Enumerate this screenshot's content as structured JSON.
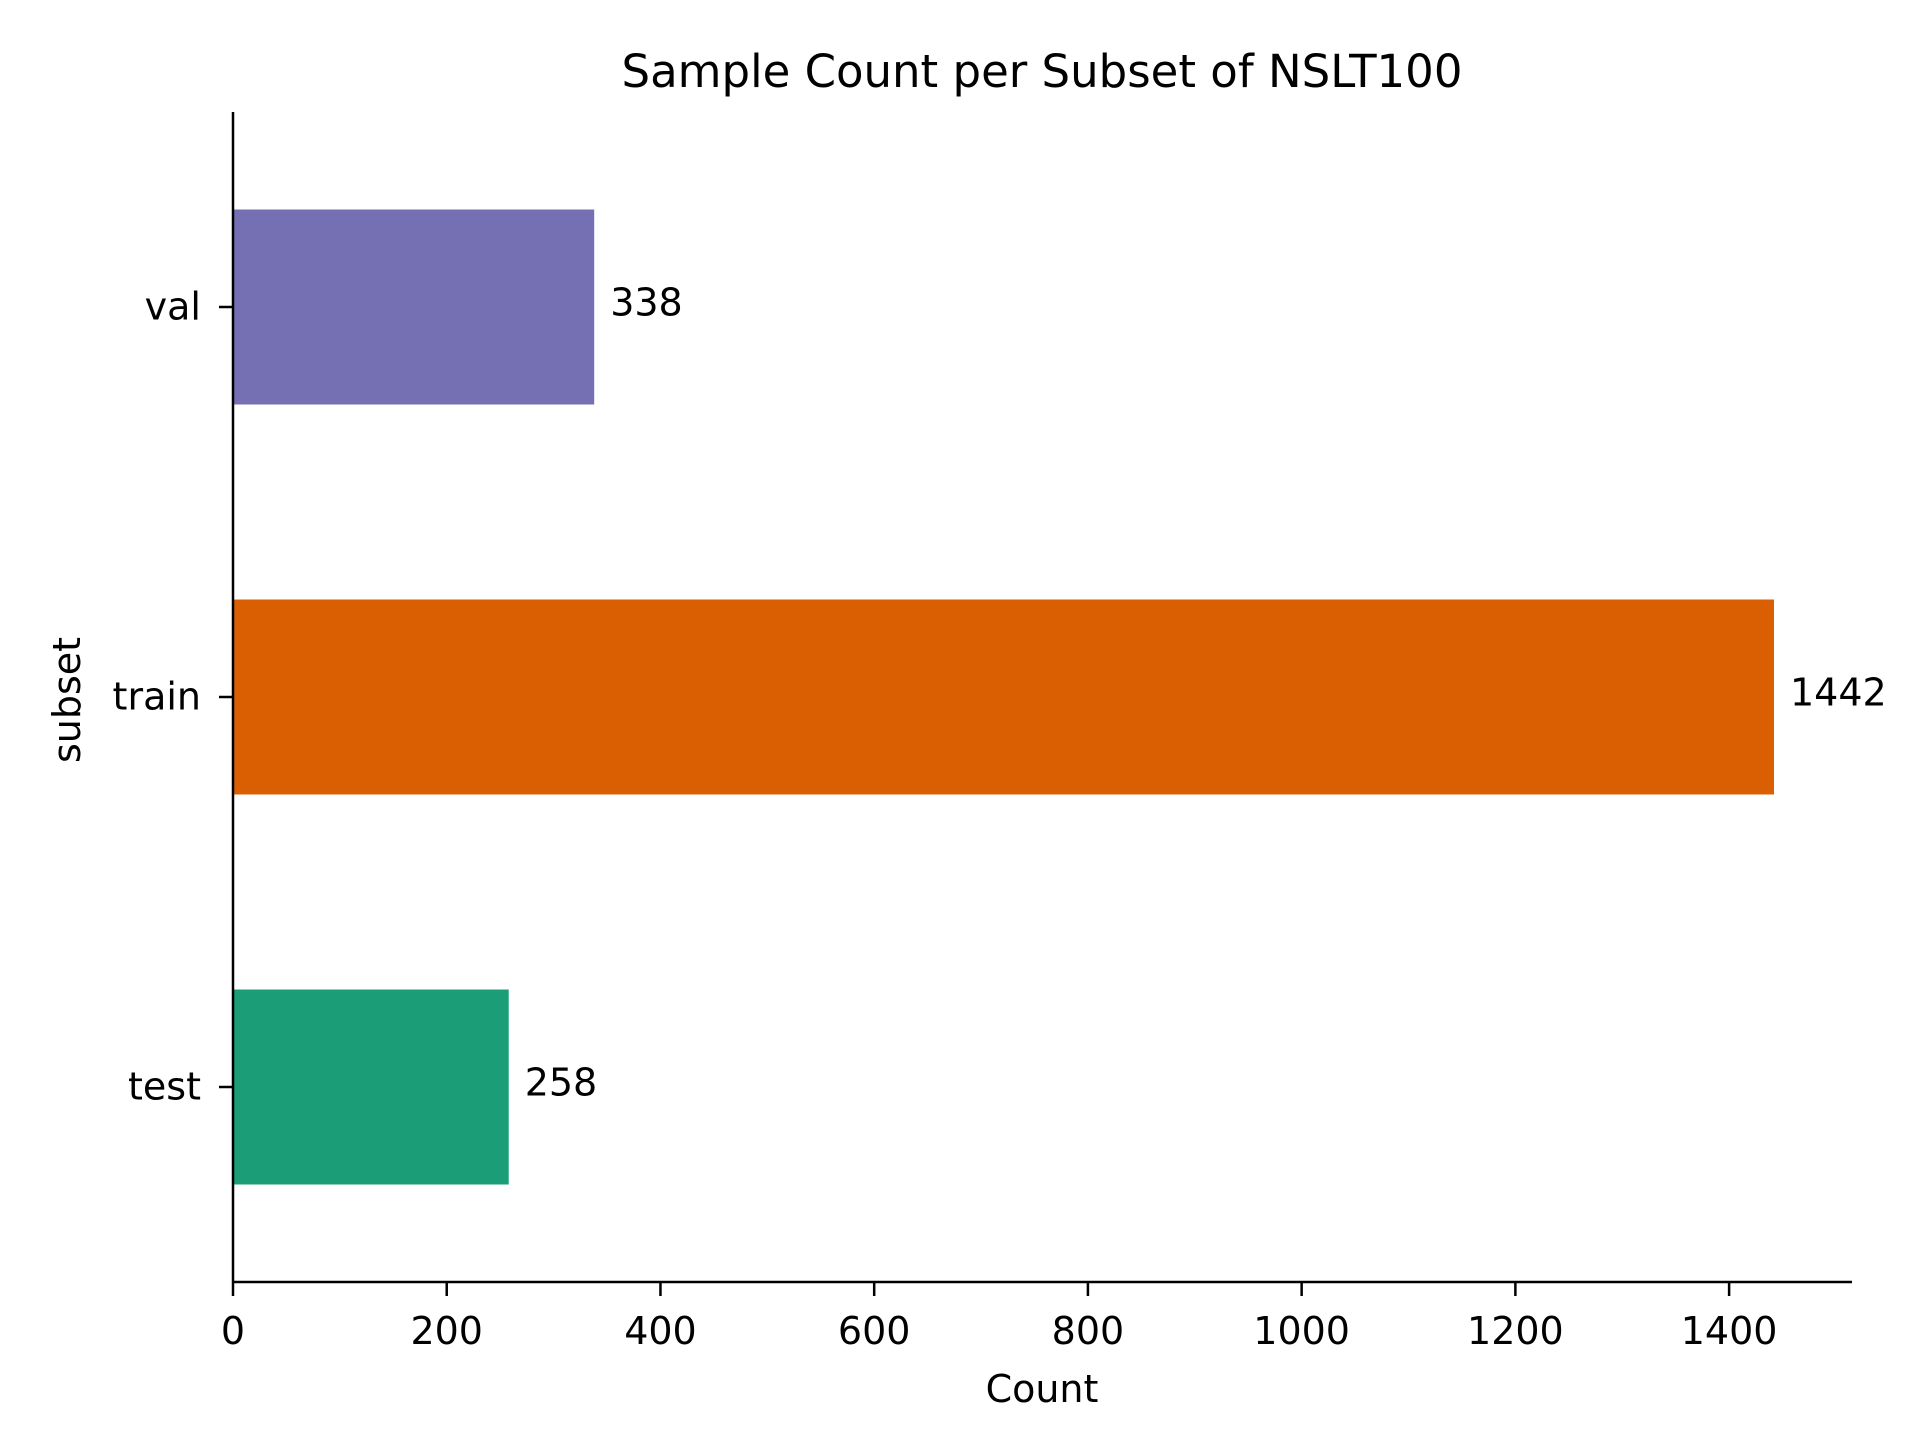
{
  "chart_data": {
    "type": "bar",
    "orientation": "horizontal",
    "title": "Sample Count per Subset of NSLT100",
    "xlabel": "Count",
    "ylabel": "subset",
    "categories": [
      "test",
      "train",
      "val"
    ],
    "values": [
      258,
      1442,
      338
    ],
    "value_labels": [
      "258",
      "1442",
      "338"
    ],
    "colors": [
      "#1b9e77",
      "#d95f02",
      "#7570b3"
    ],
    "xlim": [
      0,
      1515
    ],
    "xticks": [
      0,
      200,
      400,
      600,
      800,
      1000,
      1200,
      1400
    ],
    "xtick_labels": [
      "0",
      "200",
      "400",
      "600",
      "800",
      "1000",
      "1200",
      "1400"
    ],
    "grid": false,
    "legend": "none",
    "spines": [
      "left",
      "bottom"
    ]
  }
}
